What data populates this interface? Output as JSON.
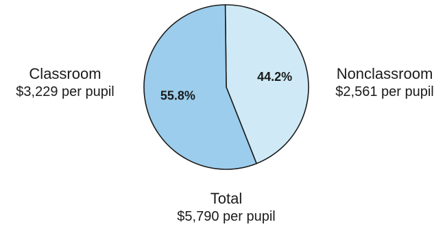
{
  "chart_data": {
    "type": "pie",
    "slices": [
      {
        "label": "Nonclassroom",
        "value": 44.2,
        "value_label": "44.2%",
        "amount": "$2,561 per pupil",
        "color": "#cfeaf6"
      },
      {
        "label": "Classroom",
        "value": 55.8,
        "value_label": "55.8%",
        "amount": "$3,229 per pupil",
        "color": "#9ccdec"
      }
    ],
    "total": {
      "label": "Total",
      "amount": "$5,790 per pupil"
    },
    "stroke_color": "#1a1a1a"
  }
}
